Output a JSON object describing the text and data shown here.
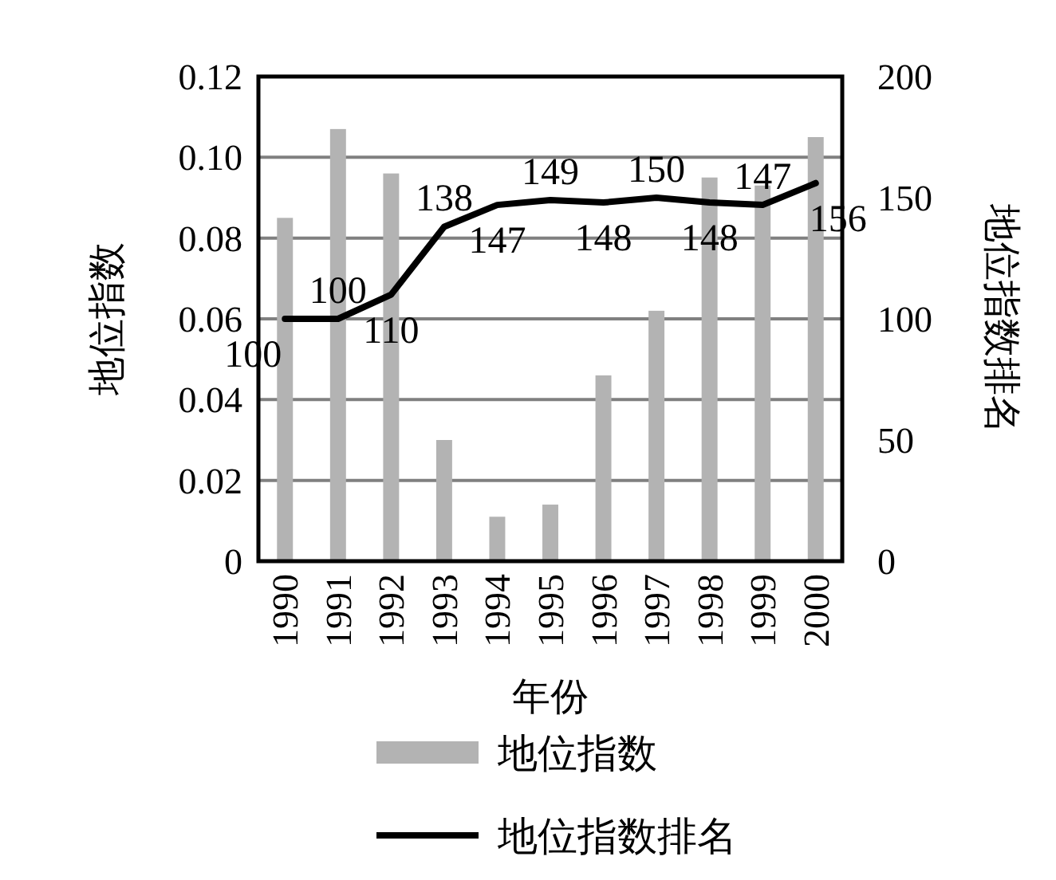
{
  "chart_data": {
    "type": "bar",
    "xlabel": "年份",
    "ylabel": "地位指数",
    "y2label": "地位指数排名",
    "categories": [
      "1990",
      "1991",
      "1992",
      "1993",
      "1994",
      "1995",
      "1996",
      "1997",
      "1998",
      "1999",
      "2000"
    ],
    "series": [
      {
        "name": "地位指数",
        "color": "#b3b3b3",
        "values": [
          0.085,
          0.107,
          0.096,
          0.03,
          0.011,
          0.014,
          0.046,
          0.062,
          0.095,
          0.093,
          0.105
        ]
      },
      {
        "name": "地位指数排名",
        "type": "line",
        "axis": "y2",
        "color": "#000000",
        "values": [
          100,
          100,
          110,
          138,
          147,
          149,
          148,
          150,
          148,
          147,
          156
        ],
        "data_labels": true
      }
    ],
    "ylim": [
      0,
      0.12
    ],
    "yticks": [
      {
        "value": 0,
        "label": "0"
      },
      0.02,
      0.04,
      0.06,
      0.08,
      {
        "value": 0.1,
        "label": "0.10"
      },
      0.12
    ],
    "y2lim": [
      0,
      200
    ],
    "y2ticks": [
      0,
      50,
      100,
      150,
      200
    ],
    "grid": "y",
    "legend": "bottom",
    "marker": "none",
    "line_style": "solid"
  }
}
